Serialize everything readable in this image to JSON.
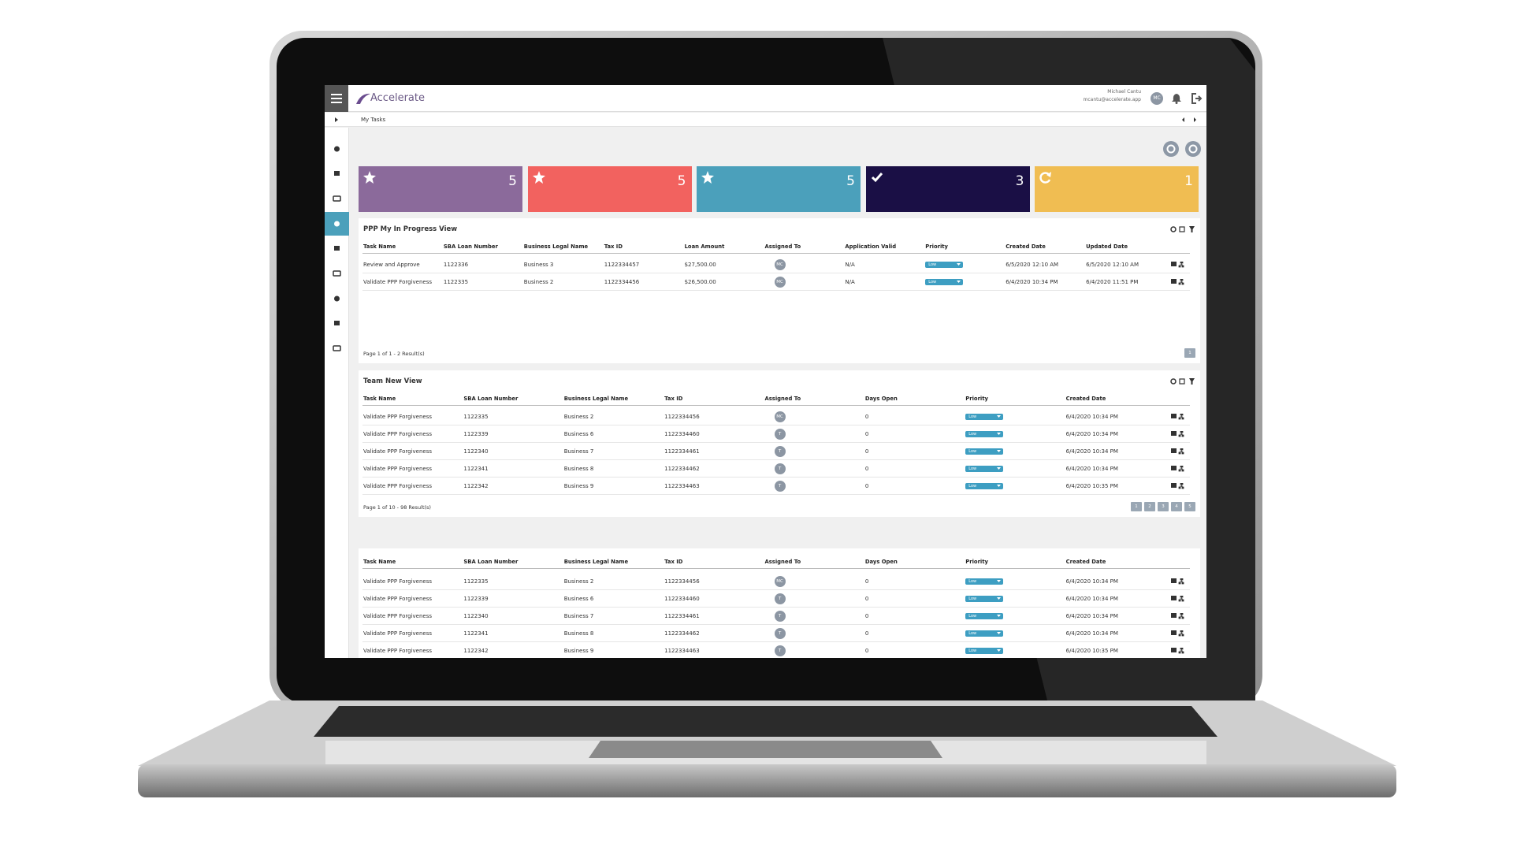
{
  "header": {
    "brand": "Accelerate",
    "user_name": "Michael Cantu",
    "user_email": "mcantu@accelerate.app",
    "user_initials": "MC"
  },
  "breadcrumb": "My Tasks",
  "tiles": [
    {
      "count": 5,
      "icon": "star",
      "color": "#8b6a9b"
    },
    {
      "count": 5,
      "icon": "star",
      "color": "#f2625f"
    },
    {
      "count": 5,
      "icon": "star",
      "color": "#4ba0bb"
    },
    {
      "count": 3,
      "icon": "check",
      "color": "#1a0f45"
    },
    {
      "count": 1,
      "icon": "refresh",
      "color": "#f0bd52"
    }
  ],
  "panels": [
    {
      "title": "PPP My In Progress View",
      "columns": [
        "Task Name",
        "SBA Loan Number",
        "Business Legal Name",
        "Tax ID",
        "Loan Amount",
        "Assigned To",
        "Application Valid",
        "Priority",
        "Created Date",
        "Updated Date"
      ],
      "rows": [
        [
          "Review and Approve",
          "1122336",
          "Business 3",
          "1122334457",
          "$27,500.00",
          {
            "initials": "MC"
          },
          "N/A",
          {
            "priority": "Low"
          },
          "6/5/2020 12:10 AM",
          "6/5/2020 12:10 AM"
        ],
        [
          "Validate PPP Forgiveness",
          "1122335",
          "Business 2",
          "1122334456",
          "$26,500.00",
          {
            "initials": "MC"
          },
          "N/A",
          {
            "priority": "Low"
          },
          "6/4/2020 10:34 PM",
          "6/4/2020 11:51 PM"
        ]
      ],
      "footer": "Page 1 of 1  -  2 Result(s)",
      "pages": [
        "1"
      ]
    },
    {
      "title": "Team New View",
      "columns": [
        "Task Name",
        "SBA Loan Number",
        "Business Legal Name",
        "Tax ID",
        "Assigned To",
        "Days Open",
        "Priority",
        "Created Date"
      ],
      "rows": [
        [
          "Validate PPP Forgiveness",
          "1122335",
          "Business 2",
          "1122334456",
          {
            "initials": "MC"
          },
          "0",
          {
            "priority": "Low"
          },
          "6/4/2020 10:34 PM"
        ],
        [
          "Validate PPP Forgiveness",
          "1122339",
          "Business 6",
          "1122334460",
          {
            "initials": "T"
          },
          "0",
          {
            "priority": "Low"
          },
          "6/4/2020 10:34 PM"
        ],
        [
          "Validate PPP Forgiveness",
          "1122340",
          "Business 7",
          "1122334461",
          {
            "initials": "T"
          },
          "0",
          {
            "priority": "Low"
          },
          "6/4/2020 10:34 PM"
        ],
        [
          "Validate PPP Forgiveness",
          "1122341",
          "Business 8",
          "1122334462",
          {
            "initials": "T"
          },
          "0",
          {
            "priority": "Low"
          },
          "6/4/2020 10:34 PM"
        ],
        [
          "Validate PPP Forgiveness",
          "1122342",
          "Business 9",
          "1122334463",
          {
            "initials": "T"
          },
          "0",
          {
            "priority": "Low"
          },
          "6/4/2020 10:35 PM"
        ]
      ],
      "footer": "Page 1 of 10  -  98 Result(s)",
      "pages": [
        "1",
        "2",
        "3",
        "4",
        "5"
      ]
    },
    {
      "columns": [
        "Task Name",
        "SBA Loan Number",
        "Business Legal Name",
        "Tax ID",
        "Assigned To",
        "Days Open",
        "Priority",
        "Created Date"
      ],
      "rows": [
        [
          "Validate PPP Forgiveness",
          "1122335",
          "Business 2",
          "1122334456",
          {
            "initials": "MC"
          },
          "0",
          {
            "priority": "Low"
          },
          "6/4/2020 10:34 PM"
        ],
        [
          "Validate PPP Forgiveness",
          "1122339",
          "Business 6",
          "1122334460",
          {
            "initials": "T"
          },
          "0",
          {
            "priority": "Low"
          },
          "6/4/2020 10:34 PM"
        ],
        [
          "Validate PPP Forgiveness",
          "1122340",
          "Business 7",
          "1122334461",
          {
            "initials": "T"
          },
          "0",
          {
            "priority": "Low"
          },
          "6/4/2020 10:34 PM"
        ],
        [
          "Validate PPP Forgiveness",
          "1122341",
          "Business 8",
          "1122334462",
          {
            "initials": "T"
          },
          "0",
          {
            "priority": "Low"
          },
          "6/4/2020 10:34 PM"
        ],
        [
          "Validate PPP Forgiveness",
          "1122342",
          "Business 9",
          "1122334463",
          {
            "initials": "T"
          },
          "0",
          {
            "priority": "Low"
          },
          "6/4/2020 10:35 PM"
        ]
      ]
    }
  ]
}
